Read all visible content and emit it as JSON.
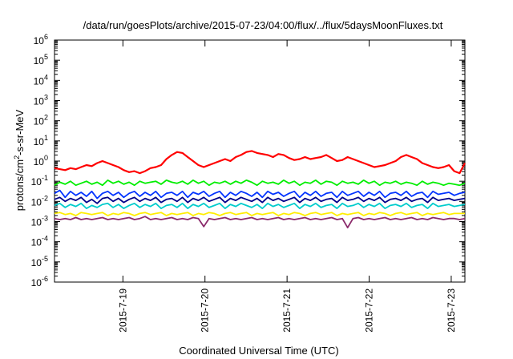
{
  "chart_data": {
    "type": "line",
    "title": "/data/run/goesPlots/archive/2015-07-23/04:00/flux/../flux/5daysMoonFluxes.txt",
    "xlabel": "Coordinated Universal Time (UTC)",
    "ylabel_parts": [
      "protons/cm",
      "2",
      "-s-sr-MeV"
    ],
    "y_scale": "log",
    "ylim_exp": [
      -6,
      6
    ],
    "y_tick_labels": [
      {
        "base": "10",
        "exp": "-6"
      },
      {
        "base": "10",
        "exp": "-5"
      },
      {
        "base": "10",
        "exp": "-4"
      },
      {
        "base": "10",
        "exp": "-3"
      },
      {
        "base": "10",
        "exp": "-2"
      },
      {
        "base": "10",
        "exp": "-1"
      },
      {
        "base": "10",
        "exp": "0"
      },
      {
        "base": "10",
        "exp": "1"
      },
      {
        "base": "10",
        "exp": "2"
      },
      {
        "base": "10",
        "exp": "3"
      },
      {
        "base": "10",
        "exp": "4"
      },
      {
        "base": "10",
        "exp": "5"
      },
      {
        "base": "10",
        "exp": "6"
      }
    ],
    "x_range_days": [
      "2015-07-18 04:00",
      "2015-07-23 04:00"
    ],
    "x_ticks": [
      {
        "date": "2015-07-19",
        "label": "2015-7-19"
      },
      {
        "date": "2015-07-20",
        "label": "2015-7-20"
      },
      {
        "date": "2015-07-21",
        "label": "2015-7-21"
      },
      {
        "date": "2015-07-22",
        "label": "2015-7-22"
      },
      {
        "date": "2015-07-23",
        "label": "2015-7-23"
      }
    ],
    "grid": false,
    "legend": "none",
    "series": [
      {
        "color": "#ff0000",
        "values_log10": [
          -0.35,
          -0.4,
          -0.45,
          -0.35,
          -0.4,
          -0.3,
          -0.2,
          -0.25,
          -0.1,
          0.0,
          -0.1,
          -0.2,
          -0.3,
          -0.45,
          -0.55,
          -0.5,
          -0.6,
          -0.5,
          -0.35,
          -0.3,
          -0.2,
          0.1,
          0.3,
          0.45,
          0.4,
          0.2,
          0.0,
          -0.2,
          -0.3,
          -0.2,
          -0.1,
          0.0,
          0.1,
          0.0,
          0.2,
          0.3,
          0.45,
          0.5,
          0.4,
          0.35,
          0.3,
          0.2,
          0.35,
          0.3,
          0.15,
          0.05,
          0.1,
          0.2,
          0.1,
          0.15,
          0.2,
          0.3,
          0.15,
          0.0,
          0.05,
          0.2,
          0.1,
          0.0,
          -0.1,
          -0.2,
          -0.3,
          -0.25,
          -0.2,
          -0.1,
          0.0,
          0.2,
          0.3,
          0.2,
          0.1,
          -0.1,
          -0.2,
          -0.3,
          -0.35,
          -0.3,
          -0.2,
          -0.5,
          -0.6,
          -0.1
        ]
      },
      {
        "color": "#00ee00",
        "values_log10": [
          -1.2,
          -1.05,
          -1.15,
          -1.0,
          -1.2,
          -1.1,
          -1.0,
          -1.15,
          -1.05,
          -1.2,
          -0.95,
          -1.1,
          -1.0,
          -1.15,
          -1.05,
          -1.2,
          -1.0,
          -1.1,
          -1.05,
          -1.0,
          -1.15,
          -0.95,
          -1.05,
          -1.1,
          -1.0,
          -1.15,
          -0.95,
          -1.1,
          -1.0,
          -1.2,
          -1.05,
          -1.1,
          -1.0,
          -1.15,
          -1.0,
          -1.1,
          -0.95,
          -1.05,
          -1.2,
          -1.0,
          -1.1,
          -1.05,
          -1.15,
          -0.95,
          -1.1,
          -1.0,
          -1.2,
          -1.05,
          -1.1,
          -0.95,
          -1.15,
          -1.0,
          -1.05,
          -1.2,
          -1.0,
          -1.1,
          -1.05,
          -1.15,
          -0.95,
          -1.1,
          -1.0,
          -1.2,
          -1.05,
          -1.1,
          -1.0,
          -1.15,
          -1.05,
          -1.1,
          -1.2,
          -1.0,
          -1.15,
          -1.05,
          -1.1,
          -1.2,
          -1.1,
          -1.15,
          -1.2,
          -1.1
        ]
      },
      {
        "color": "#0033ff",
        "values_log10": [
          -1.6,
          -1.45,
          -1.8,
          -1.5,
          -1.7,
          -1.55,
          -1.75,
          -1.5,
          -1.85,
          -1.6,
          -1.5,
          -1.7,
          -1.55,
          -1.8,
          -1.6,
          -1.5,
          -1.75,
          -1.55,
          -1.7,
          -1.5,
          -1.8,
          -1.6,
          -1.55,
          -1.7,
          -1.5,
          -1.8,
          -1.55,
          -1.65,
          -1.5,
          -1.75,
          -1.6,
          -1.5,
          -1.8,
          -1.55,
          -1.7,
          -1.5,
          -1.6,
          -1.75,
          -1.55,
          -1.8,
          -1.5,
          -1.65,
          -1.55,
          -1.75,
          -1.6,
          -1.5,
          -1.8,
          -1.55,
          -1.7,
          -1.5,
          -1.75,
          -1.6,
          -1.55,
          -1.8,
          -1.5,
          -1.7,
          -1.6,
          -1.5,
          -1.75,
          -1.55,
          -1.7,
          -1.5,
          -1.8,
          -1.6,
          -1.55,
          -1.7,
          -1.5,
          -1.75,
          -1.6,
          -1.55,
          -1.8,
          -1.5,
          -1.65,
          -1.6,
          -1.55,
          -1.7,
          -1.6,
          -1.55
        ]
      },
      {
        "color": "#000088",
        "values_log10": [
          -1.9,
          -1.8,
          -2.0,
          -1.85,
          -1.95,
          -1.8,
          -2.05,
          -1.9,
          -2.1,
          -1.85,
          -1.8,
          -2.0,
          -1.85,
          -2.05,
          -1.9,
          -1.8,
          -2.0,
          -1.85,
          -1.95,
          -1.8,
          -2.05,
          -1.9,
          -1.85,
          -2.0,
          -1.8,
          -2.05,
          -1.85,
          -1.95,
          -1.8,
          -2.0,
          -1.9,
          -1.8,
          -2.05,
          -1.85,
          -1.95,
          -1.8,
          -1.9,
          -2.0,
          -1.85,
          -2.05,
          -1.8,
          -1.95,
          -1.85,
          -2.0,
          -1.9,
          -1.8,
          -2.05,
          -1.85,
          -1.95,
          -1.8,
          -2.0,
          -1.9,
          -1.85,
          -2.05,
          -1.8,
          -1.95,
          -1.9,
          -1.8,
          -2.0,
          -1.85,
          -1.95,
          -1.8,
          -2.05,
          -1.9,
          -1.85,
          -1.95,
          -1.8,
          -2.0,
          -1.9,
          -1.85,
          -2.05,
          -1.8,
          -1.95,
          -1.9,
          -1.85,
          -1.95,
          -1.9,
          -1.85
        ]
      },
      {
        "color": "#00cccc",
        "values_log10": [
          -2.2,
          -2.1,
          -2.3,
          -2.15,
          -2.25,
          -2.1,
          -2.35,
          -2.2,
          -2.3,
          -2.15,
          -2.1,
          -2.3,
          -2.15,
          -2.35,
          -2.2,
          -2.1,
          -2.3,
          -2.15,
          -2.25,
          -2.1,
          -2.35,
          -2.2,
          -2.15,
          -2.3,
          -2.1,
          -2.35,
          -2.15,
          -2.25,
          -2.1,
          -2.3,
          -2.2,
          -2.1,
          -2.35,
          -2.15,
          -2.25,
          -2.1,
          -2.2,
          -2.3,
          -2.15,
          -2.35,
          -2.1,
          -2.25,
          -2.15,
          -2.3,
          -2.2,
          -2.1,
          -2.35,
          -2.15,
          -2.25,
          -2.1,
          -2.3,
          -2.2,
          -2.15,
          -2.35,
          -2.1,
          -2.25,
          -2.2,
          -2.1,
          -2.3,
          -2.15,
          -2.25,
          -2.1,
          -2.35,
          -2.2,
          -2.15,
          -2.25,
          -2.1,
          -2.3,
          -2.2,
          -2.15,
          -2.35,
          -2.1,
          -2.25,
          -2.2,
          -2.15,
          -2.25,
          -2.2,
          -2.15
        ]
      },
      {
        "color": "#ffee00",
        "values_log10": [
          -2.6,
          -2.55,
          -2.65,
          -2.6,
          -2.7,
          -2.55,
          -2.6,
          -2.65,
          -2.6,
          -2.55,
          -2.7,
          -2.6,
          -2.65,
          -2.55,
          -2.6,
          -2.7,
          -2.6,
          -2.55,
          -2.65,
          -2.6,
          -2.55,
          -2.7,
          -2.6,
          -2.65,
          -2.6,
          -2.55,
          -2.7,
          -2.6,
          -2.65,
          -2.55,
          -2.6,
          -2.7,
          -2.6,
          -2.55,
          -2.65,
          -2.6,
          -2.55,
          -2.7,
          -2.6,
          -2.65,
          -2.6,
          -2.55,
          -2.7,
          -2.6,
          -2.65,
          -2.55,
          -2.6,
          -2.7,
          -2.6,
          -2.55,
          -2.65,
          -2.6,
          -2.55,
          -2.7,
          -2.6,
          -2.65,
          -2.6,
          -2.55,
          -2.7,
          -2.6,
          -2.65,
          -2.55,
          -2.6,
          -2.7,
          -2.6,
          -2.55,
          -2.65,
          -2.6,
          -2.55,
          -2.7,
          -2.6,
          -2.65,
          -2.6,
          -2.55,
          -2.65,
          -2.6,
          -2.6,
          -2.6
        ]
      },
      {
        "color": "#8b2a6b",
        "values_log10": [
          -2.85,
          -2.9,
          -2.85,
          -2.9,
          -2.8,
          -2.9,
          -2.85,
          -2.9,
          -2.85,
          -2.8,
          -2.9,
          -2.85,
          -2.9,
          -2.85,
          -2.8,
          -2.9,
          -2.85,
          -2.75,
          -2.9,
          -2.85,
          -2.9,
          -2.85,
          -2.8,
          -2.9,
          -2.85,
          -2.9,
          -2.8,
          -2.85,
          -3.25,
          -2.85,
          -2.9,
          -2.85,
          -2.8,
          -2.9,
          -2.85,
          -2.9,
          -2.85,
          -2.8,
          -2.9,
          -2.85,
          -2.9,
          -2.85,
          -2.8,
          -2.9,
          -2.85,
          -2.9,
          -2.85,
          -2.8,
          -2.9,
          -2.85,
          -2.9,
          -2.85,
          -2.8,
          -2.9,
          -2.85,
          -3.3,
          -2.85,
          -2.8,
          -2.9,
          -2.85,
          -2.9,
          -2.85,
          -2.8,
          -2.9,
          -2.85,
          -2.9,
          -2.85,
          -2.8,
          -2.9,
          -2.85,
          -2.9,
          -2.8,
          -2.85,
          -2.9,
          -2.85,
          -2.85,
          -2.9,
          -2.85
        ]
      }
    ]
  }
}
